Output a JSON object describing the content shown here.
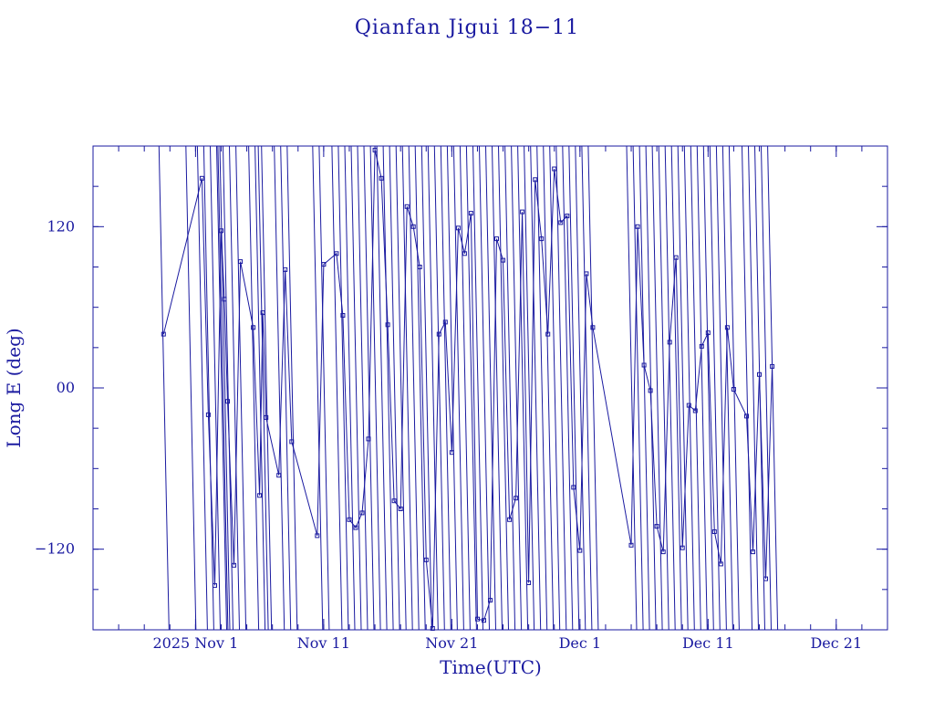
{
  "chart_data": {
    "type": "line",
    "title": "Qianfan Jigui 18−11",
    "xlabel": "Time(UTC)",
    "ylabel": "Long E (deg)",
    "xlim": [
      "2025-10-24",
      "2025-12-25"
    ],
    "ylim": [
      -180,
      180
    ],
    "x_ticks": [
      {
        "date": "2025-11-01",
        "label": "2025 Nov  1"
      },
      {
        "date": "2025-11-11",
        "label": "Nov 11"
      },
      {
        "date": "2025-11-21",
        "label": "Nov 21"
      },
      {
        "date": "2025-12-01",
        "label": "Dec  1"
      },
      {
        "date": "2025-12-11",
        "label": "Dec 11"
      },
      {
        "date": "2025-12-21",
        "label": "Dec 21"
      }
    ],
    "y_ticks": [
      {
        "value": 120,
        "label": "120"
      },
      {
        "value": 0,
        "label": "00"
      },
      {
        "value": -120,
        "label": "−120"
      }
    ],
    "grid": false,
    "series": [
      {
        "marker": "square",
        "x": [
          "2025-10-29T12:00",
          "2025-11-01T12:00",
          "2025-11-02T00:00",
          "2025-11-02T12:00",
          "2025-11-03T00:00",
          "2025-11-03T06:00",
          "2025-11-03T12:00",
          "2025-11-04T00:00",
          "2025-11-04T12:00",
          "2025-11-05T12:00",
          "2025-11-06T00:00",
          "2025-11-06T06:00",
          "2025-11-06T12:00",
          "2025-11-07T12:00",
          "2025-11-08T00:00",
          "2025-11-08T12:00",
          "2025-11-10T12:00",
          "2025-11-11T00:00",
          "2025-11-12T00:00",
          "2025-11-12T12:00",
          "2025-11-13T00:00",
          "2025-11-13T12:00",
          "2025-11-14T00:00",
          "2025-11-14T12:00",
          "2025-11-15T00:00",
          "2025-11-15T12:00",
          "2025-11-16T00:00",
          "2025-11-16T12:00",
          "2025-11-17T00:00",
          "2025-11-17T12:00",
          "2025-11-18T00:00",
          "2025-11-18T12:00",
          "2025-11-19T00:00",
          "2025-11-19T12:00",
          "2025-11-20T00:00",
          "2025-11-20T12:00",
          "2025-11-21T00:00",
          "2025-11-21T12:00",
          "2025-11-22T00:00",
          "2025-11-22T12:00",
          "2025-11-23T00:00",
          "2025-11-23T12:00",
          "2025-11-24T00:00",
          "2025-11-24T12:00",
          "2025-11-25T00:00",
          "2025-11-25T12:00",
          "2025-11-26T00:00",
          "2025-11-26T12:00",
          "2025-11-27T00:00",
          "2025-11-27T12:00",
          "2025-11-28T00:00",
          "2025-11-28T12:00",
          "2025-11-29T00:00",
          "2025-11-29T12:00",
          "2025-11-30T00:00",
          "2025-11-30T12:00",
          "2025-12-01T00:00",
          "2025-12-01T12:00",
          "2025-12-02T00:00",
          "2025-12-05T00:00",
          "2025-12-05T12:00",
          "2025-12-06T00:00",
          "2025-12-06T12:00",
          "2025-12-07T00:00",
          "2025-12-07T12:00",
          "2025-12-08T00:00",
          "2025-12-08T12:00",
          "2025-12-09T00:00",
          "2025-12-09T12:00",
          "2025-12-10T00:00",
          "2025-12-10T12:00",
          "2025-12-11T00:00",
          "2025-12-11T12:00",
          "2025-12-12T00:00",
          "2025-12-12T12:00",
          "2025-12-13T00:00",
          "2025-12-14T00:00",
          "2025-12-14T12:00",
          "2025-12-15T00:00",
          "2025-12-15T12:00",
          "2025-12-16T00:00"
        ],
        "y": [
          40,
          156,
          -20,
          -147,
          117,
          66,
          -10,
          -132,
          94,
          45,
          -80,
          56,
          -22,
          -65,
          88,
          -40,
          -110,
          92,
          100,
          54,
          -98,
          -104,
          -93,
          -38,
          177,
          156,
          47,
          -84,
          -90,
          135,
          120,
          90,
          -128,
          -179,
          40,
          49,
          -48,
          119,
          100,
          130,
          -172,
          -173,
          -158,
          111,
          95,
          -98,
          -82,
          131,
          -145,
          155,
          111,
          40,
          163,
          123,
          128,
          -74,
          -121,
          85,
          45,
          -117,
          120,
          17,
          -2,
          -103,
          -122,
          34,
          97,
          -119,
          -13,
          -17,
          31,
          41,
          -107,
          -131,
          45,
          -1,
          -21,
          -122,
          10,
          -142,
          16
        ]
      }
    ],
    "description_none": ""
  }
}
